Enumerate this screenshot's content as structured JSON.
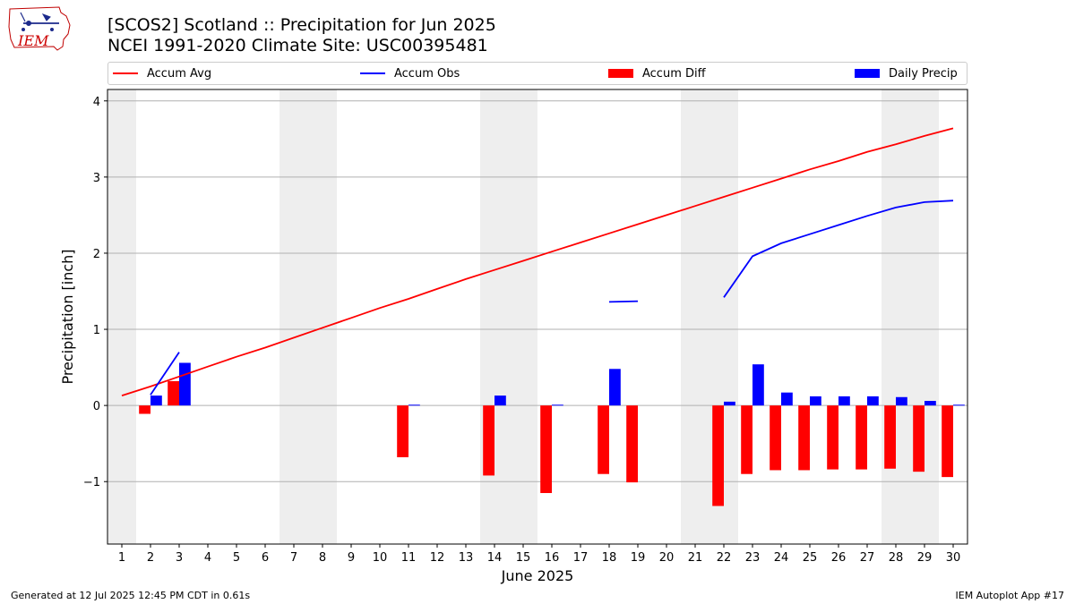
{
  "header": {
    "title_line1": "[SCOS2] Scotland :: Precipitation for Jun 2025",
    "title_line2": "NCEI 1991-2020 Climate Site: USC00395481"
  },
  "logo": {
    "text": "IEM"
  },
  "legend": [
    {
      "label": "Accum Avg",
      "kind": "line",
      "color": "#ff0000"
    },
    {
      "label": "Accum Obs",
      "kind": "line",
      "color": "#0000ff"
    },
    {
      "label": "Accum Diff",
      "kind": "patch",
      "color": "#ff0000"
    },
    {
      "label": "Daily Precip",
      "kind": "patch",
      "color": "#0000ff"
    }
  ],
  "footer": {
    "left": "Generated at 12 Jul 2025 12:45 PM CDT in 0.61s",
    "right": "IEM Autoplot App #17"
  },
  "chart_data": {
    "type": "bar",
    "xlabel": "June 2025",
    "ylabel": "Precipitation [inch]",
    "xlim": [
      0.5,
      30.5
    ],
    "ylim": [
      -1.82,
      4.15
    ],
    "yticks": [
      -1,
      0,
      1,
      2,
      3,
      4
    ],
    "ytick_labels": [
      "−1",
      "0",
      "1",
      "2",
      "3",
      "4"
    ],
    "x": [
      1,
      2,
      3,
      4,
      5,
      6,
      7,
      8,
      9,
      10,
      11,
      12,
      13,
      14,
      15,
      16,
      17,
      18,
      19,
      20,
      21,
      22,
      23,
      24,
      25,
      26,
      27,
      28,
      29,
      30
    ],
    "weekend_days": [
      1,
      7,
      8,
      14,
      15,
      21,
      22,
      28,
      29
    ],
    "grid": "horizontal",
    "series": [
      {
        "name": "Accum Avg",
        "kind": "line",
        "color": "#ff0000",
        "values": [
          0.13,
          0.25,
          0.38,
          0.51,
          0.64,
          0.76,
          0.89,
          1.02,
          1.15,
          1.28,
          1.4,
          1.53,
          1.66,
          1.78,
          1.9,
          2.02,
          2.14,
          2.26,
          2.38,
          2.5,
          2.62,
          2.74,
          2.86,
          2.98,
          3.1,
          3.21,
          3.33,
          3.43,
          3.54,
          3.64
        ]
      },
      {
        "name": "Accum Obs",
        "kind": "line",
        "color": "#0000ff",
        "values": [
          null,
          0.14,
          0.7,
          null,
          null,
          null,
          null,
          null,
          null,
          null,
          null,
          null,
          null,
          null,
          null,
          null,
          null,
          1.36,
          1.37,
          null,
          null,
          1.42,
          1.96,
          2.13,
          2.25,
          2.37,
          2.49,
          2.6,
          2.67,
          2.69
        ]
      },
      {
        "name": "Accum Diff",
        "kind": "bar",
        "color": "#ff0000",
        "values": [
          null,
          -0.11,
          0.32,
          null,
          null,
          null,
          null,
          null,
          null,
          null,
          -0.68,
          null,
          null,
          -0.92,
          null,
          -1.15,
          null,
          -0.9,
          -1.01,
          null,
          null,
          -1.32,
          -0.9,
          -0.85,
          -0.85,
          -0.84,
          -0.84,
          -0.83,
          -0.87,
          -0.94
        ]
      },
      {
        "name": "Daily Precip",
        "kind": "bar",
        "color": "#0000ff",
        "values": [
          0,
          0.13,
          0.56,
          0,
          0,
          0,
          0,
          0,
          0,
          0,
          0.01,
          0,
          0,
          0.13,
          0,
          0.01,
          0,
          0.48,
          0,
          0,
          0,
          0.05,
          0.54,
          0.17,
          0.12,
          0.12,
          0.12,
          0.11,
          0.06,
          0.01
        ]
      }
    ]
  }
}
